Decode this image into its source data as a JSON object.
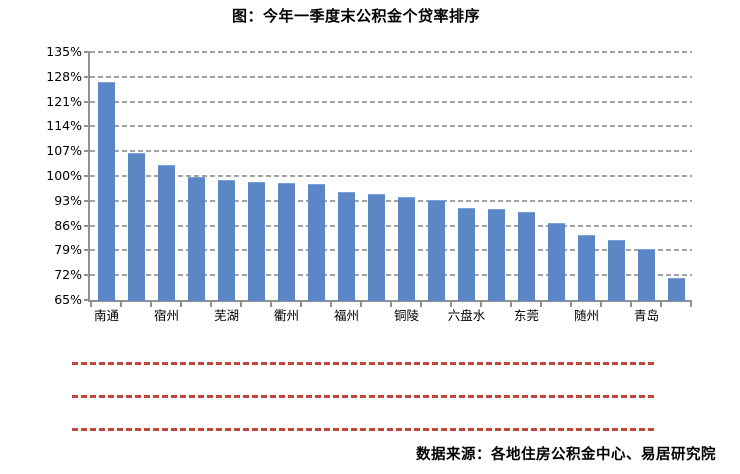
{
  "title": "图：今年一季度末公积金个贷率排序",
  "source": "数据来源：各地住房公积金中心、易居研究院",
  "chart_data": {
    "type": "bar",
    "title": "图：今年一季度末公积金个贷率排序",
    "categories": [
      "南通",
      "",
      "宿州",
      "",
      "芜湖",
      "",
      "衢州",
      "",
      "福州",
      "",
      "铜陵",
      "",
      "六盘水",
      "",
      "东莞",
      "",
      "随州",
      "",
      "青岛",
      ""
    ],
    "values": [
      126.5,
      106.4,
      103.0,
      99.6,
      99.0,
      98.2,
      98.0,
      97.7,
      95.6,
      95.0,
      94.0,
      93.2,
      91.0,
      90.7,
      89.9,
      86.7,
      83.4,
      81.9,
      79.4,
      71.1
    ],
    "xlabel": "",
    "ylabel": "",
    "ylim": [
      65,
      135
    ],
    "ytick_step": 7,
    "yticks": [
      135,
      128,
      121,
      114,
      107,
      100,
      93,
      86,
      79,
      72,
      65
    ],
    "ytick_suffix": "%",
    "grid": "dashed-horizontal",
    "legend": "none",
    "bar_color": "#5b87c6",
    "grid_color": "#a3a3a3",
    "axis_color": "#919191",
    "label_interval": 2
  },
  "decor": {
    "red_dashed_lines": 3,
    "red_line_color": "#c2463a"
  }
}
